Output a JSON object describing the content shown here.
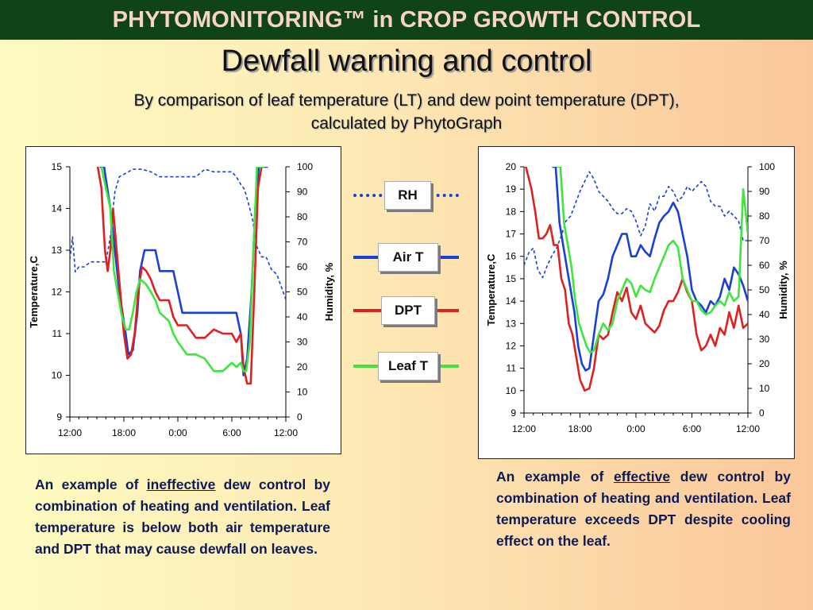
{
  "header": {
    "banner": "PHYTOMONITORING™ in CROP GROWTH CONTROL"
  },
  "slide": {
    "title": "Dewfall warning and control",
    "subtitle_line1": "By comparison of  leaf temperature (LT) and dew point temperature (DPT),",
    "subtitle_line2": "calculated by PhytoGraph"
  },
  "legend": {
    "items": [
      {
        "label": "RH",
        "color": "#1a3fd6",
        "style": "dotted"
      },
      {
        "label": "Air T",
        "color": "#1a3fd6",
        "style": "solid"
      },
      {
        "label": "DPT",
        "color": "#e01f1f",
        "style": "solid"
      },
      {
        "label": "Leaf T",
        "color": "#3fe43f",
        "style": "solid"
      }
    ]
  },
  "captions": {
    "left": {
      "pre": "An example of ",
      "em": "ineffective",
      "post": " dew control by combination of heating and ventilation. Leaf temperature is below both air temperature and DPT that may cause dewfall on leaves."
    },
    "right": {
      "pre": "An example of ",
      "em": "effective",
      "post": " dew control by combination of heating and ventilation. Leaf temperature exceeds DPT despite cooling effect on the leaf."
    }
  },
  "chart_data": [
    {
      "type": "line",
      "ylabel": "Temperature,C",
      "y2label": "Humidity, %",
      "ylim": [
        9,
        15
      ],
      "yticks": [
        9,
        10,
        11,
        12,
        13,
        14,
        15
      ],
      "y2lim": [
        0,
        100
      ],
      "y2ticks": [
        0,
        10,
        20,
        30,
        40,
        50,
        60,
        70,
        80,
        90,
        100
      ],
      "xlim": [
        0,
        24
      ],
      "xtick_labels": [
        "12:00",
        "18:00",
        "0:00",
        "6:00",
        "12:00"
      ],
      "grid": false,
      "series": [
        {
          "name": "RH",
          "axis": "right",
          "color": "#1a3fd6",
          "dash": true,
          "x": [
            0,
            0.3,
            0.6,
            1,
            1.6,
            2.3,
            3,
            3.5,
            4,
            4.5,
            5,
            5.5,
            6,
            6.5,
            7,
            8,
            9,
            10,
            11,
            12,
            13,
            14,
            15,
            16,
            17,
            18,
            18.5,
            19,
            19.4,
            19.8,
            20.3,
            20.8,
            21.3,
            21.8,
            22.4,
            23,
            23.6,
            24
          ],
          "y": [
            63,
            72,
            58,
            60,
            60,
            62,
            62,
            62,
            62,
            72,
            90,
            96,
            97,
            98,
            99,
            99,
            98,
            96,
            96,
            96,
            96,
            96,
            99,
            98,
            98,
            98,
            96,
            93,
            91,
            86,
            79,
            68,
            64,
            64,
            59,
            57,
            51,
            47
          ]
        },
        {
          "name": "Air T",
          "axis": "left",
          "color": "#1a3fd6",
          "x": [
            3.3,
            3.8,
            4.5,
            5.5,
            6.2,
            6.5,
            7,
            7.5,
            7.8,
            8.3,
            9,
            9.5,
            10,
            11,
            11.5,
            12,
            12.5,
            13,
            14,
            15,
            16,
            17,
            18,
            18.5,
            19,
            19.3,
            19.7,
            20.2,
            20.6,
            21,
            21.5,
            22
          ],
          "y": [
            15,
            15,
            14,
            12,
            11,
            10.5,
            10.6,
            11.5,
            12.5,
            13,
            13,
            13,
            12.5,
            12.5,
            12.5,
            12,
            11.5,
            11.5,
            11.5,
            11.5,
            11.5,
            11.5,
            11.5,
            11.5,
            11,
            10,
            10.4,
            12,
            14,
            15,
            15,
            15
          ]
        },
        {
          "name": "DPT",
          "axis": "left",
          "color": "#e01f1f",
          "x": [
            3.1,
            3.5,
            3.9,
            4.2,
            4.5,
            4.8,
            5.2,
            5.6,
            6,
            6.4,
            6.8,
            7.2,
            7.6,
            8,
            8.5,
            9,
            9.5,
            10,
            11,
            11.5,
            12,
            13,
            14,
            15,
            16,
            17,
            18,
            18.5,
            19,
            19.3,
            19.7,
            20.1,
            20.5,
            20.9,
            21.3,
            21.7
          ],
          "y": [
            15,
            14.5,
            13,
            12.5,
            13,
            14,
            13,
            12,
            11,
            10.4,
            10.5,
            11,
            12,
            12.6,
            12.5,
            12.3,
            12,
            11.8,
            11.8,
            11.4,
            11.2,
            11.2,
            10.9,
            10.9,
            11.1,
            11,
            11,
            10.8,
            11,
            10.2,
            9.8,
            9.8,
            12,
            14.5,
            15,
            15
          ]
        },
        {
          "name": "Leaf T",
          "axis": "left",
          "color": "#3fe43f",
          "x": [
            3.5,
            4,
            4.5,
            4.9,
            5.3,
            5.7,
            6.2,
            6.6,
            7,
            7.4,
            7.8,
            8.4,
            9,
            9.5,
            10,
            11,
            11.5,
            12,
            13,
            14,
            15,
            16,
            17,
            17.5,
            18,
            18.5,
            19,
            19.3,
            19.6,
            20,
            20.4,
            20.8,
            21.2,
            21.6
          ],
          "y": [
            15,
            14.5,
            14,
            12.5,
            12,
            11.5,
            11.1,
            11.1,
            11.5,
            12,
            12.3,
            12.2,
            12,
            11.8,
            11.5,
            11.3,
            11,
            10.8,
            10.5,
            10.5,
            10.4,
            10.1,
            10.1,
            10.2,
            10.3,
            10.2,
            10.3,
            10.1,
            10.1,
            10.8,
            13,
            15,
            15,
            15
          ]
        }
      ]
    },
    {
      "type": "line",
      "ylabel": "Temperature,C",
      "y2label": "Humidity, %",
      "ylim": [
        9,
        20
      ],
      "yticks": [
        9,
        10,
        11,
        12,
        13,
        14,
        15,
        16,
        17,
        18,
        19,
        20
      ],
      "y2lim": [
        0,
        100
      ],
      "y2ticks": [
        0,
        10,
        20,
        30,
        40,
        50,
        60,
        70,
        80,
        90,
        100
      ],
      "xlim": [
        0,
        24
      ],
      "xtick_labels": [
        "12:00",
        "18:00",
        "0:00",
        "6:00",
        "12:00"
      ],
      "grid": false,
      "series": [
        {
          "name": "RH",
          "axis": "right",
          "color": "#1a3fd6",
          "dash": true,
          "x": [
            0,
            0.5,
            1,
            1.5,
            2,
            2.5,
            3,
            3.5,
            4,
            4.5,
            5,
            5.5,
            6,
            6.5,
            7,
            7.5,
            8,
            8.5,
            9,
            9.5,
            10,
            10.5,
            11,
            11.5,
            12,
            12.5,
            13,
            13.5,
            14,
            14.5,
            15,
            15.5,
            16,
            16.5,
            17,
            17.5,
            18,
            18.5,
            19,
            19.5,
            20,
            20.5,
            21,
            21.5,
            22,
            22.5,
            23,
            23.5,
            24
          ],
          "y": [
            60,
            65,
            67,
            58,
            55,
            60,
            64,
            67,
            72,
            78,
            80,
            85,
            90,
            94,
            98,
            95,
            90,
            88,
            86,
            83,
            81,
            81,
            83,
            82,
            78,
            72,
            76,
            85,
            82,
            88,
            88,
            92,
            90,
            86,
            88,
            92,
            90,
            92,
            94,
            92,
            86,
            84,
            84,
            80,
            82,
            80,
            78,
            70,
            70
          ]
        },
        {
          "name": "Air T",
          "axis": "left",
          "color": "#1a3fd6",
          "x": [
            3,
            3.4,
            3.8,
            4.2,
            4.6,
            5,
            5.4,
            5.8,
            6.2,
            6.6,
            7,
            7.5,
            8,
            8.5,
            9,
            9.5,
            10,
            10.5,
            11,
            11.5,
            12,
            12.5,
            13,
            13.5,
            14,
            14.5,
            15,
            15.5,
            16,
            16.5,
            17,
            17.5,
            18,
            18.5,
            19,
            19.5,
            20,
            20.5,
            21,
            21.5,
            22,
            22.5,
            23,
            23.5,
            24
          ],
          "y": [
            20,
            20,
            17.5,
            16.5,
            15.5,
            14.5,
            13.5,
            12,
            11.2,
            10.9,
            11,
            12.5,
            14,
            14.3,
            15,
            16,
            16.5,
            17,
            17,
            16,
            16,
            16.5,
            16.2,
            16,
            16.8,
            17.5,
            17.8,
            18,
            18.4,
            18,
            17,
            16,
            14.5,
            14,
            13.8,
            13.5,
            14,
            13.8,
            14.2,
            15,
            14.5,
            15.5,
            15.2,
            14.7,
            14
          ]
        },
        {
          "name": "DPT",
          "axis": "left",
          "color": "#e01f1f",
          "x": [
            0,
            0.2,
            0.5,
            0.8,
            1.2,
            1.6,
            2,
            2.4,
            2.8,
            3.2,
            3.6,
            4,
            4.4,
            4.8,
            5.2,
            5.6,
            6,
            6.5,
            7,
            7.5,
            8,
            8.5,
            9,
            9.5,
            10,
            10.5,
            11,
            11.5,
            12,
            12.5,
            13,
            13.5,
            14,
            14.5,
            15,
            15.5,
            16,
            16.5,
            17,
            17.5,
            18,
            18.5,
            19,
            19.5,
            20,
            20.5,
            21,
            21.5,
            22,
            22.5,
            23,
            23.5,
            24
          ],
          "y": [
            20,
            20,
            19.5,
            19,
            18,
            16.8,
            16.8,
            17,
            17.4,
            16.5,
            16.5,
            15,
            14.5,
            13,
            12.5,
            11.5,
            10.5,
            10,
            10.1,
            11,
            12.5,
            12.3,
            12.5,
            13.5,
            14.4,
            14,
            14.6,
            13.5,
            13.2,
            13.8,
            13,
            12.8,
            12.6,
            12.9,
            13.6,
            14,
            14,
            14.4,
            15,
            14.4,
            14,
            12.5,
            11.8,
            12,
            12.5,
            12,
            12.8,
            12.5,
            13.5,
            12.8,
            13.8,
            12.8,
            13
          ]
        },
        {
          "name": "Leaf T",
          "axis": "left",
          "color": "#3fe43f",
          "x": [
            3.5,
            3.9,
            4.3,
            4.7,
            5.1,
            5.5,
            5.9,
            6.3,
            6.7,
            7.1,
            7.5,
            8,
            8.5,
            9,
            9.5,
            10,
            10.5,
            11,
            11.5,
            12,
            12.5,
            13,
            13.5,
            14,
            14.5,
            15,
            15.5,
            16,
            16.5,
            17,
            17.5,
            18,
            18.5,
            19,
            19.5,
            20,
            20.5,
            21,
            21.5,
            22,
            22.5,
            23,
            23.5,
            24
          ],
          "y": [
            20,
            20,
            17.5,
            16.5,
            15.5,
            14,
            13,
            12.5,
            12,
            11.7,
            11.8,
            12.5,
            13,
            12.7,
            13,
            14,
            14.5,
            15,
            14.8,
            14.2,
            14.7,
            14.5,
            14.4,
            15,
            15.5,
            16,
            16.5,
            16.7,
            16.4,
            15,
            14.5,
            14,
            14,
            13.6,
            13.4,
            13.5,
            13.8,
            14,
            13.8,
            14.4,
            14,
            14.2,
            19,
            17
          ]
        }
      ]
    }
  ]
}
